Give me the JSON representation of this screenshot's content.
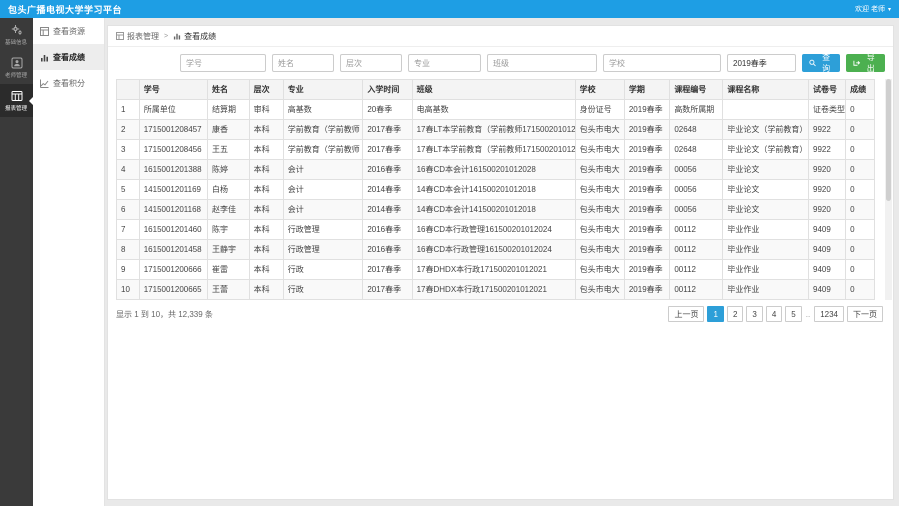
{
  "topbar": {
    "title": "包头广播电视大学学习平台",
    "user": "欢迎 老师",
    "caret": "▾"
  },
  "dark_sidebar": {
    "items": [
      {
        "label": "基础信息"
      },
      {
        "label": "老师管理"
      },
      {
        "label": "报表管理"
      }
    ]
  },
  "submenu": {
    "items": [
      {
        "label": "查看资源"
      },
      {
        "label": "查看成绩"
      },
      {
        "label": "查看积分"
      }
    ]
  },
  "breadcrumb": {
    "parent": "报表管理",
    "separator": ">",
    "current": "查看成绩"
  },
  "filters": {
    "student_id_placeholder": "学号",
    "name_placeholder": "姓名",
    "level_placeholder": "层次",
    "major_placeholder": "专业",
    "class_placeholder": "班级",
    "school_placeholder": "学校",
    "semester_value": "2019春季",
    "search_label": "查询",
    "export_label": "导出"
  },
  "table": {
    "headers": [
      "",
      "学号",
      "姓名",
      "层次",
      "专业",
      "入学时间",
      "班级",
      "学校",
      "学期",
      "课程编号",
      "课程名称",
      "试卷号",
      "成绩"
    ],
    "rows": [
      [
        "1",
        "所属单位",
        "结算期",
        "审科",
        "高基数",
        "20春季",
        "电高基数",
        "身份证号",
        "2019春季",
        "高数所属期",
        "",
        "证卷类型",
        "0"
      ],
      [
        "2",
        "1715001208457",
        "康香",
        "本科",
        "学前教育（学前教师",
        "2017春季",
        "17春LT本学前教育（学前教师171500201012038",
        "包头市电大",
        "2019春季",
        "02648",
        "毕业论文（学前教育）",
        "9922",
        "0"
      ],
      [
        "3",
        "1715001208456",
        "王五",
        "本科",
        "学前教育（学前教师",
        "2017春季",
        "17春LT本学前教育（学前教师171500201012038",
        "包头市电大",
        "2019春季",
        "02648",
        "毕业论文（学前教育）",
        "9922",
        "0"
      ],
      [
        "4",
        "1615001201388",
        "陈婷",
        "本科",
        "会计",
        "2016春季",
        "16春CD本会计161500201012028",
        "包头市电大",
        "2019春季",
        "00056",
        "毕业论文",
        "9920",
        "0"
      ],
      [
        "5",
        "1415001201169",
        "白杨",
        "本科",
        "会计",
        "2014春季",
        "14春CD本会计141500201012018",
        "包头市电大",
        "2019春季",
        "00056",
        "毕业论文",
        "9920",
        "0"
      ],
      [
        "6",
        "1415001201168",
        "赵李佳",
        "本科",
        "会计",
        "2014春季",
        "14春CD本会计141500201012018",
        "包头市电大",
        "2019春季",
        "00056",
        "毕业论文",
        "9920",
        "0"
      ],
      [
        "7",
        "1615001201460",
        "陈宇",
        "本科",
        "行政管理",
        "2016春季",
        "16春CD本行政管理161500201012024",
        "包头市电大",
        "2019春季",
        "00112",
        "毕业作业",
        "9409",
        "0"
      ],
      [
        "8",
        "1615001201458",
        "王静宇",
        "本科",
        "行政管理",
        "2016春季",
        "16春CD本行政管理161500201012024",
        "包头市电大",
        "2019春季",
        "00112",
        "毕业作业",
        "9409",
        "0"
      ],
      [
        "9",
        "1715001200666",
        "崔雷",
        "本科",
        "行政",
        "2017春季",
        "17春DHDX本行政171500201012021",
        "包头市电大",
        "2019春季",
        "00112",
        "毕业作业",
        "9409",
        "0"
      ],
      [
        "10",
        "1715001200665",
        "王蕾",
        "本科",
        "行政",
        "2017春季",
        "17春DHDX本行政171500201012021",
        "包头市电大",
        "2019春季",
        "00112",
        "毕业作业",
        "9409",
        "0"
      ]
    ]
  },
  "footer": {
    "summary": "显示 1 到 10，共 12,339 条"
  },
  "pagination": {
    "prev_label": "上一页",
    "pages": [
      "1",
      "2",
      "3",
      "4",
      "5"
    ],
    "ellipsis": "..",
    "last_page": "1234",
    "next_label": "下一页",
    "active_page": "1"
  },
  "colors": {
    "topbar": "#1e9ee4",
    "accent_blue": "#2d9fd8",
    "accent_green": "#4cb050"
  }
}
